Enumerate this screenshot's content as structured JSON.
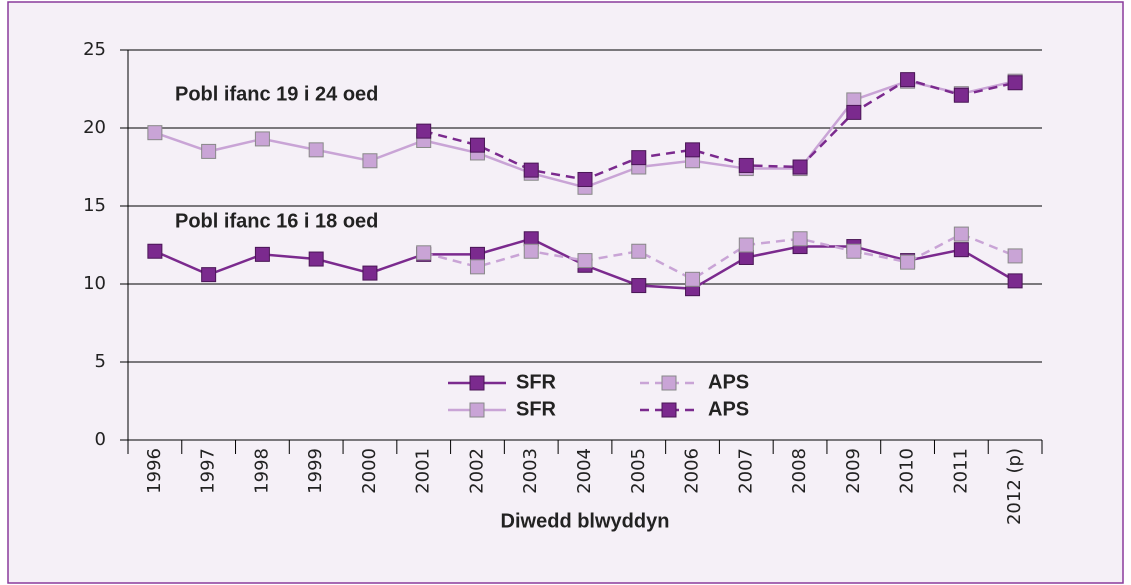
{
  "chart_data": {
    "type": "line",
    "annotations": [
      "Pobl ifanc 19 i 24 oed",
      "Pobl ifanc 16 i 18 oed"
    ],
    "x_label": "Diwedd blwyddyn",
    "categories": [
      "1996",
      "1997",
      "1998",
      "1999",
      "2000",
      "2001",
      "2002",
      "2003",
      "2004",
      "2005",
      "2006",
      "2007",
      "2008",
      "2009",
      "2010",
      "2011",
      "2012 (p)"
    ],
    "series": [
      {
        "name": "SFR",
        "color": "#7b2a8e",
        "dashed": false,
        "values": [
          12.1,
          10.6,
          11.9,
          11.6,
          10.7,
          11.9,
          11.9,
          12.9,
          11.2,
          9.9,
          9.7,
          11.7,
          12.4,
          12.4,
          11.5,
          12.2,
          10.2
        ]
      },
      {
        "name": "APS",
        "color": "#c9a4d6",
        "dashed": true,
        "values": [
          null,
          null,
          null,
          null,
          null,
          12.0,
          11.1,
          12.1,
          11.5,
          12.1,
          10.3,
          12.5,
          12.9,
          12.1,
          11.4,
          13.2,
          11.8
        ]
      },
      {
        "name": "SFR",
        "color": "#c9a4d6",
        "dashed": false,
        "values": [
          19.7,
          18.5,
          19.3,
          18.6,
          17.9,
          19.2,
          18.4,
          17.1,
          16.2,
          17.5,
          17.9,
          17.4,
          17.4,
          21.8,
          23.0,
          22.2,
          23.0
        ]
      },
      {
        "name": "APS",
        "color": "#7b2a8e",
        "dashed": true,
        "values": [
          null,
          null,
          null,
          null,
          null,
          19.8,
          18.9,
          17.3,
          16.7,
          18.1,
          18.6,
          17.6,
          17.5,
          21.0,
          23.1,
          22.1,
          22.9
        ]
      }
    ],
    "ylim": [
      0,
      25
    ],
    "yticks": [
      0,
      5,
      10,
      15,
      20,
      25
    ],
    "grid": true
  }
}
